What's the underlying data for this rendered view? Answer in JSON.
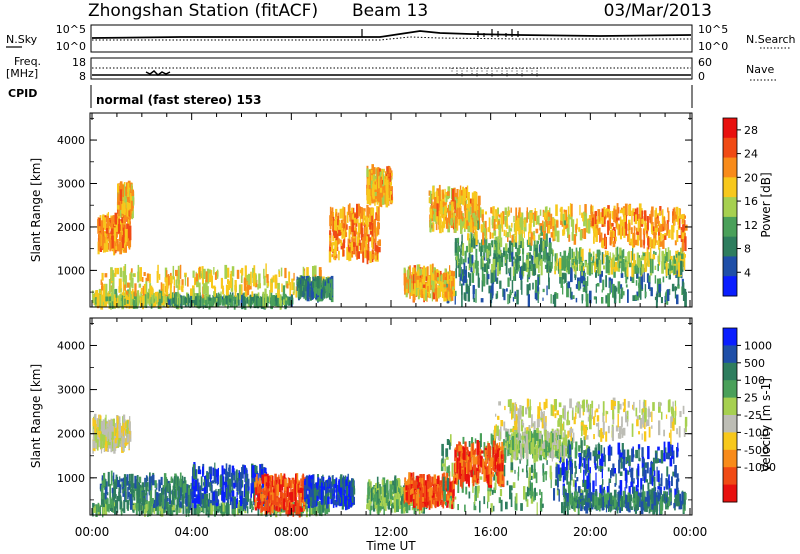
{
  "header": {
    "station": "Zhongshan Station (fitACF)",
    "beam": "Beam 13",
    "date": "03/Mar/2013"
  },
  "meta_panel": {
    "nsky_label": "N.Sky",
    "nsky_ticks": [
      "10^5",
      "10^0"
    ],
    "nsearch_label": "N.Search",
    "nsearch_ticks": [
      "10^5",
      "10^0"
    ],
    "freq_label_1": "Freq.",
    "freq_label_2": "[MHz]",
    "freq_ticks": [
      "18",
      "8"
    ],
    "nave_label": "Nave",
    "nave_ticks": [
      "60",
      "0"
    ],
    "cpid_label": "CPID",
    "cpid_text": "normal (fast stereo) 153"
  },
  "colors": {
    "power_scale": [
      "#0a1eff",
      "#1f4fa8",
      "#2e7d5e",
      "#4aa05a",
      "#a6d050",
      "#f7c81c",
      "#f88b1a",
      "#f04a14",
      "#e8100e"
    ],
    "velocity_scale": [
      "#0a1eff",
      "#1f4fa8",
      "#2e7d5e",
      "#4aa05a",
      "#a6d050",
      "#bdbdb5",
      "#f7c81c",
      "#f88b1a",
      "#f04a14",
      "#e8100e"
    ]
  },
  "chart_data": [
    {
      "type": "heatmap",
      "title": "",
      "xlabel": "Time UT",
      "ylabel": "Slant Range [km]",
      "x_ticks": [
        "00:00",
        "04:00",
        "08:00",
        "12:00",
        "16:00",
        "20:00",
        "00:00"
      ],
      "y_ticks": [
        "1000",
        "2000",
        "3000",
        "4000"
      ],
      "xlim_hours": [
        0,
        24
      ],
      "ylim_km": [
        180,
        4600
      ],
      "colorbar_label": "Power [dB]",
      "colorbar_ticks": [
        "4",
        "8",
        "12",
        "16",
        "20",
        "24",
        "28"
      ],
      "colorbar_range": [
        0,
        30
      ],
      "regions": [
        {
          "t": [
            0.0,
            3.0
          ],
          "r": [
            250,
            420
          ],
          "v": 14
        },
        {
          "t": [
            3.0,
            8.0
          ],
          "r": [
            250,
            350
          ],
          "v": 20
        },
        {
          "t": [
            0.3,
            9.5
          ],
          "r": [
            450,
            1000
          ],
          "v": 12
        },
        {
          "t": [
            8.2,
            9.6
          ],
          "r": [
            420,
            750
          ],
          "v": 22
        },
        {
          "t": [
            0.2,
            1.5
          ],
          "r": [
            1500,
            2200
          ],
          "v": 8
        },
        {
          "t": [
            1.0,
            1.6
          ],
          "r": [
            2300,
            2900
          ],
          "v": 10
        },
        {
          "t": [
            9.5,
            11.5
          ],
          "r": [
            1300,
            2400
          ],
          "v": 8
        },
        {
          "t": [
            11.0,
            12.0
          ],
          "r": [
            2600,
            3300
          ],
          "v": 10
        },
        {
          "t": [
            13.5,
            15.5
          ],
          "r": [
            2000,
            2800
          ],
          "v": 10
        },
        {
          "t": [
            14.0,
            23.8
          ],
          "r": [
            300,
            1000
          ],
          "v": 22
        },
        {
          "t": [
            14.5,
            18.5
          ],
          "r": [
            1000,
            1700
          ],
          "v": 20
        },
        {
          "t": [
            18.5,
            23.8
          ],
          "r": [
            1000,
            1400
          ],
          "v": 16
        },
        {
          "t": [
            15.0,
            20.0
          ],
          "r": [
            1700,
            2400
          ],
          "v": 12
        },
        {
          "t": [
            20.0,
            23.8
          ],
          "r": [
            1600,
            2400
          ],
          "v": 8
        },
        {
          "t": [
            12.5,
            14.5
          ],
          "r": [
            400,
            1000
          ],
          "v": 10
        }
      ]
    },
    {
      "type": "heatmap",
      "title": "",
      "xlabel": "Time UT",
      "ylabel": "Slant Range [km]",
      "x_ticks": [
        "00:00",
        "04:00",
        "08:00",
        "12:00",
        "16:00",
        "20:00",
        "00:00"
      ],
      "y_ticks": [
        "1000",
        "2000",
        "3000",
        "4000"
      ],
      "xlim_hours": [
        0,
        24
      ],
      "ylim_km": [
        180,
        4600
      ],
      "colorbar_label": "Velocity [m s-1]",
      "colorbar_ticks": [
        "1000",
        "500",
        "100",
        "25",
        "-25",
        "-100",
        "-500",
        "-1000"
      ],
      "regions": [
        {
          "t": [
            0.0,
            9.5
          ],
          "r": [
            250,
            380
          ],
          "v": 3
        },
        {
          "t": [
            0.3,
            4.0
          ],
          "r": [
            380,
            1000
          ],
          "v": 2
        },
        {
          "t": [
            4.0,
            7.0
          ],
          "r": [
            400,
            1200
          ],
          "v": 1
        },
        {
          "t": [
            6.5,
            8.5
          ],
          "r": [
            250,
            1000
          ],
          "v": 8
        },
        {
          "t": [
            8.5,
            10.5
          ],
          "r": [
            400,
            950
          ],
          "v": 1
        },
        {
          "t": [
            0.0,
            1.5
          ],
          "r": [
            1700,
            2300
          ],
          "v": 5
        },
        {
          "t": [
            11.0,
            13.5
          ],
          "r": [
            300,
            900
          ],
          "v": 3
        },
        {
          "t": [
            12.5,
            14.5
          ],
          "r": [
            400,
            1000
          ],
          "v": 8
        },
        {
          "t": [
            14.0,
            20.0
          ],
          "r": [
            300,
            1900
          ],
          "v": 3
        },
        {
          "t": [
            14.5,
            16.5
          ],
          "r": [
            900,
            1700
          ],
          "v": 8
        },
        {
          "t": [
            18.5,
            23.5
          ],
          "r": [
            600,
            1700
          ],
          "v": 1
        },
        {
          "t": [
            19.0,
            23.8
          ],
          "r": [
            300,
            600
          ],
          "v": 2
        },
        {
          "t": [
            16.0,
            23.8
          ],
          "r": [
            1900,
            2700
          ],
          "v": 5
        },
        {
          "t": [
            16.5,
            19.0
          ],
          "r": [
            1500,
            2000
          ],
          "v": 4
        }
      ]
    }
  ]
}
